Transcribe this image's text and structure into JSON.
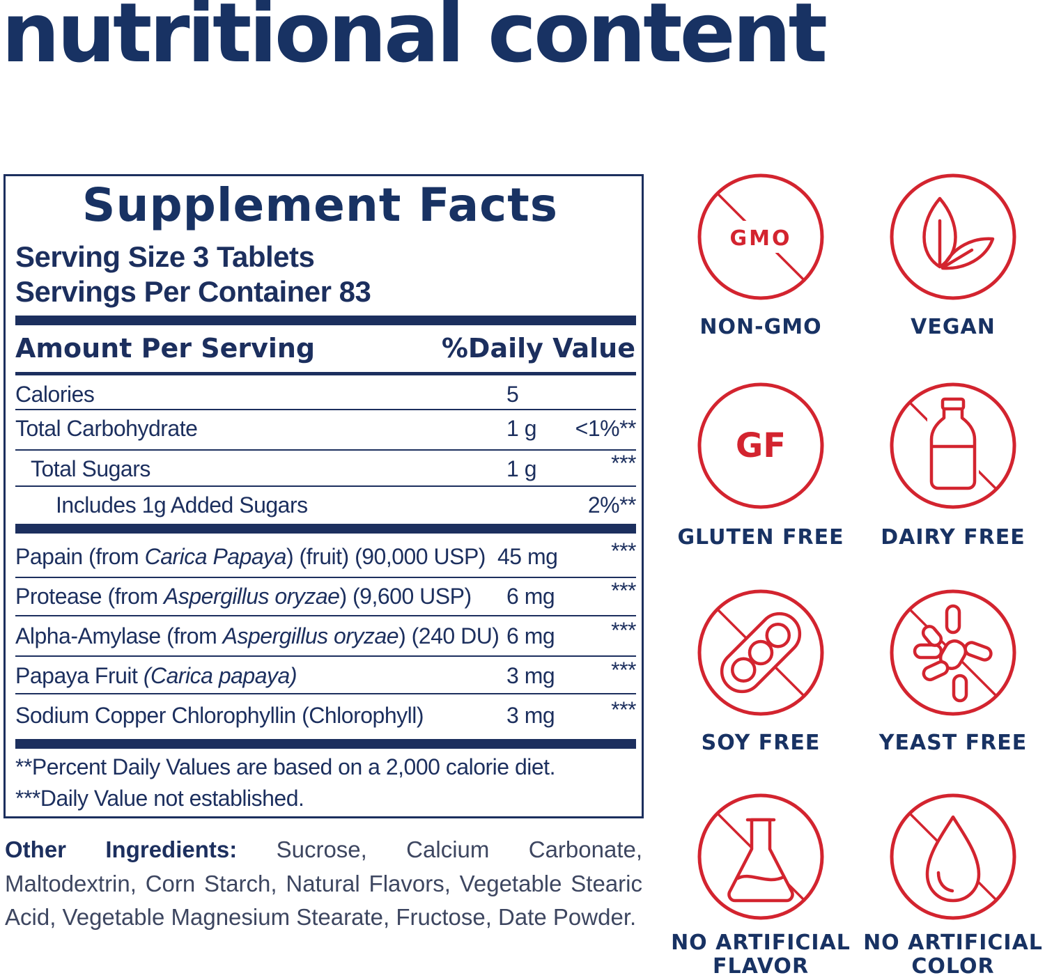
{
  "heading": "nutritional content",
  "facts": {
    "title": "Supplement Facts",
    "serving_size": "Serving Size 3 Tablets",
    "servings_per_container": "Servings Per Container 83",
    "amount_header": "Amount Per Serving",
    "dv_header": "%Daily Value",
    "rows": [
      {
        "name": "Calories",
        "amount": "5",
        "dv": ""
      },
      {
        "name": "Total Carbohydrate",
        "amount": "1 g",
        "dv": "<1%**"
      },
      {
        "name": "Total Sugars",
        "amount": "1 g",
        "dv": "***"
      },
      {
        "name": "Includes 1g Added Sugars",
        "amount": "",
        "dv": "2%**"
      }
    ],
    "ingredients": [
      {
        "name_pre": "Papain (from ",
        "name_italic": "Carica Papaya",
        "name_post": ") (fruit) (90,000 USP)",
        "amount": "45 mg",
        "dv": "***"
      },
      {
        "name_pre": "Protease (from ",
        "name_italic": "Aspergillus oryzae",
        "name_post": ") (9,600 USP)",
        "amount": "6 mg",
        "dv": "***"
      },
      {
        "name_pre": "Alpha-Amylase (from ",
        "name_italic": "Aspergillus oryzae",
        "name_post": ") (240 DU)",
        "amount": "6 mg",
        "dv": "***"
      },
      {
        "name_pre": "Papaya Fruit ",
        "name_italic": "(Carica papaya)",
        "name_post": "",
        "amount": "3 mg",
        "dv": "***"
      },
      {
        "name_pre": "Sodium Copper Chlorophyllin (Chlorophyll)",
        "name_italic": "",
        "name_post": "",
        "amount": "3 mg",
        "dv": "***"
      }
    ],
    "footnote_1": "**Percent Daily Values are based on a 2,000 calorie diet.",
    "footnote_2": "***Daily Value not established."
  },
  "other_ingredients": {
    "label": "Other Ingredients:",
    "text": "Sucrose, Calcium Carbonate, Maltodextrin, Corn Starch, Natural Flavors, Vegetable Stearic Acid, Vegetable Magnesium Stearate, Fructose, Date Powder."
  },
  "badges": [
    {
      "icon": "no-gmo-icon",
      "icon_text": "GMO",
      "label_1": "NON-GMO",
      "label_2": ""
    },
    {
      "icon": "leaf-icon",
      "label_1": "VEGAN",
      "label_2": ""
    },
    {
      "icon": "gluten-free-icon",
      "icon_text": "GF",
      "label_1": "GLUTEN FREE",
      "label_2": ""
    },
    {
      "icon": "milk-bottle-icon",
      "label_1": "DAIRY FREE",
      "label_2": ""
    },
    {
      "icon": "soy-pod-icon",
      "label_1": "SOY FREE",
      "label_2": ""
    },
    {
      "icon": "yeast-icon",
      "label_1": "YEAST FREE",
      "label_2": ""
    },
    {
      "icon": "flask-icon",
      "label_1": "NO ARTIFICIAL",
      "label_2": "FLAVOR"
    },
    {
      "icon": "drop-icon",
      "label_1": "NO ARTIFICIAL",
      "label_2": "COLOR"
    }
  ],
  "colors": {
    "navy": "#183263",
    "red": "#d3242f"
  }
}
